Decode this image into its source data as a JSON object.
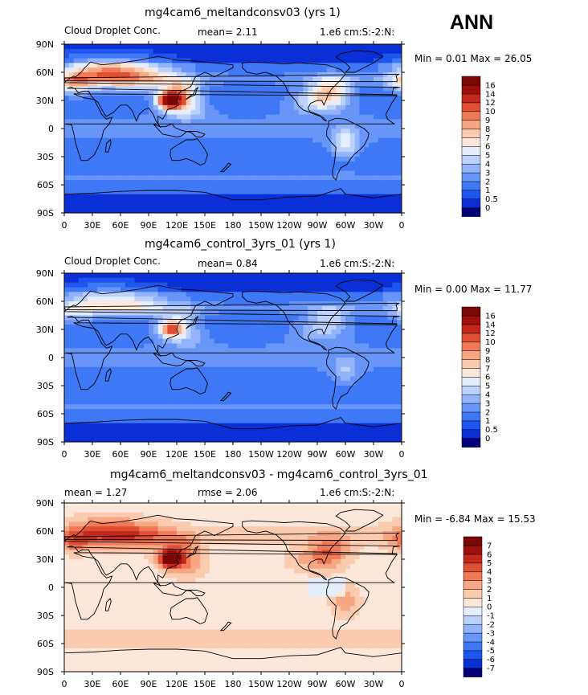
{
  "season": "ANN",
  "panels": [
    {
      "title": "mg4cam6_meltandconsv03 (yrs 1)",
      "field_label": "Cloud Droplet Conc.",
      "stat_left": "",
      "stat_mid": "mean=    2.11",
      "units": "1.e6 cm:S:-2:N:",
      "min_max": "Min =    0.01  Max =   26.05",
      "kind": "abs",
      "hotspot_strength": 1.0
    },
    {
      "title": "mg4cam6_control_3yrs_01 (yrs 1)",
      "field_label": "Cloud Droplet Conc.",
      "stat_left": "",
      "stat_mid": "mean=    0.84",
      "units": "1.e6 cm:S:-2:N:",
      "min_max": "Min =    0.00  Max =   11.77",
      "kind": "abs",
      "hotspot_strength": 0.55
    },
    {
      "title": "mg4cam6_meltandconsv03 - mg4cam6_control_3yrs_01",
      "field_label": "",
      "stat_left": "mean =    1.27",
      "stat_mid": "rmse =    2.06",
      "units": "1.e6 cm:S:-2:N:",
      "min_max": "Min =   -6.84  Max =   15.53",
      "kind": "diff",
      "hotspot_strength": 1.0
    }
  ],
  "chart_data": [
    {
      "type": "heatmap",
      "title": "mg4cam6_meltandconsv03 (yrs 1)",
      "variable": "Cloud Droplet Conc.",
      "units": "1.e6 cm:S:-2:N:",
      "mean": 2.11,
      "min": 0.01,
      "max": 26.05,
      "x_ticks": [
        "0",
        "30E",
        "60E",
        "90E",
        "120E",
        "150E",
        "180",
        "150W",
        "120W",
        "90W",
        "60W",
        "30W",
        "0"
      ],
      "y_ticks": [
        "90N",
        "60N",
        "30N",
        "0",
        "30S",
        "60S",
        "90S"
      ],
      "colorbar_levels": [
        "0",
        "0.5",
        "1",
        "2",
        "3",
        "4",
        "5",
        "6",
        "7",
        "8",
        "9",
        "10",
        "12",
        "14",
        "16"
      ],
      "colorbar_colors": [
        "#05007a",
        "#0a2fd6",
        "#1e55ee",
        "#3e78f6",
        "#6896f8",
        "#93b4fa",
        "#bcd2fc",
        "#e4eefe",
        "#fde7d9",
        "#fbcbb0",
        "#f7a783",
        "#f07a58",
        "#e04f34",
        "#c4281b",
        "#9e0f0d",
        "#7a0606"
      ]
    },
    {
      "type": "heatmap",
      "title": "mg4cam6_control_3yrs_01 (yrs 1)",
      "variable": "Cloud Droplet Conc.",
      "units": "1.e6 cm:S:-2:N:",
      "mean": 0.84,
      "min": 0.0,
      "max": 11.77,
      "x_ticks": [
        "0",
        "30E",
        "60E",
        "90E",
        "120E",
        "150E",
        "180",
        "150W",
        "120W",
        "90W",
        "60W",
        "30W",
        "0"
      ],
      "y_ticks": [
        "90N",
        "60N",
        "30N",
        "0",
        "30S",
        "60S",
        "90S"
      ],
      "colorbar_levels": [
        "0",
        "0.5",
        "1",
        "2",
        "3",
        "4",
        "5",
        "6",
        "7",
        "8",
        "9",
        "10",
        "12",
        "14",
        "16"
      ],
      "colorbar_colors": [
        "#05007a",
        "#0a2fd6",
        "#1e55ee",
        "#3e78f6",
        "#6896f8",
        "#93b4fa",
        "#bcd2fc",
        "#e4eefe",
        "#fde7d9",
        "#fbcbb0",
        "#f7a783",
        "#f07a58",
        "#e04f34",
        "#c4281b",
        "#9e0f0d",
        "#7a0606"
      ]
    },
    {
      "type": "heatmap",
      "title": "mg4cam6_meltandconsv03 - mg4cam6_control_3yrs_01",
      "units": "1.e6 cm:S:-2:N:",
      "mean": 1.27,
      "rmse": 2.06,
      "min": -6.84,
      "max": 15.53,
      "x_ticks": [
        "0",
        "30E",
        "60E",
        "90E",
        "120E",
        "150E",
        "180",
        "150W",
        "120W",
        "90W",
        "60W",
        "30W",
        "0"
      ],
      "y_ticks": [
        "90N",
        "60N",
        "30N",
        "0",
        "30S",
        "60S",
        "90S"
      ],
      "colorbar_levels": [
        "-7",
        "-6",
        "-5",
        "-4",
        "-3",
        "-2",
        "-1",
        "0",
        "1",
        "2",
        "3",
        "4",
        "5",
        "6",
        "7"
      ],
      "colorbar_colors": [
        "#05007a",
        "#0a2fd6",
        "#1e55ee",
        "#3e78f6",
        "#6896f8",
        "#93b4fa",
        "#bcd2fc",
        "#e4eefe",
        "#fde7d9",
        "#fbcbb0",
        "#f7a783",
        "#f07a58",
        "#e04f34",
        "#c4281b",
        "#9e0f0d",
        "#7a0606"
      ]
    }
  ]
}
